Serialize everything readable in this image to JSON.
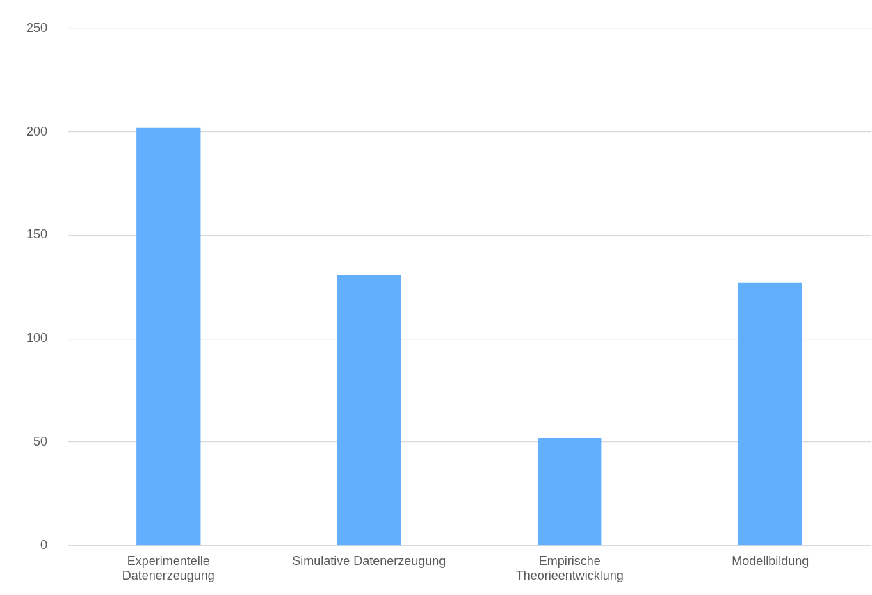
{
  "chart_data": {
    "type": "bar",
    "categories": [
      "Experimentelle Datenerzeugung",
      "Simulative Datenerzeugung",
      "Empirische Theorieentwicklung",
      "Modellbildung"
    ],
    "values": [
      202,
      131,
      52,
      127
    ],
    "color": "#62b0fd",
    "ylim": [
      0,
      250
    ],
    "yticks": [
      0,
      50,
      100,
      150,
      200,
      250
    ],
    "grid": "y",
    "legend": false
  }
}
